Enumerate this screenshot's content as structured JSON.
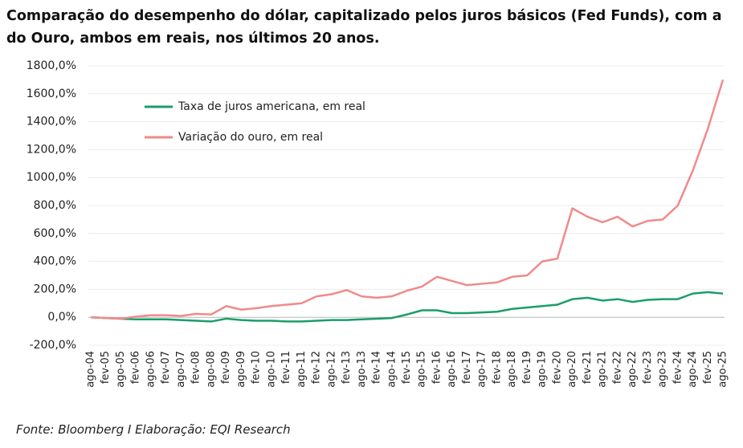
{
  "chart_data": {
    "type": "line",
    "title": "Comparação do desempenho do dólar, capitalizado pelos juros básicos (Fed Funds), com a do Ouro, ambos em reais, nos últimos 20 anos.",
    "source": "Fonte: Bloomberg I Elaboração: EQI Research",
    "categories": [
      "ago-04",
      "fev-05",
      "ago-05",
      "fev-06",
      "ago-06",
      "fev-07",
      "ago-07",
      "fev-08",
      "ago-08",
      "fev-09",
      "ago-09",
      "fev-10",
      "ago-10",
      "fev-11",
      "ago-11",
      "fev-12",
      "ago-12",
      "fev-13",
      "ago-13",
      "fev-14",
      "ago-14",
      "fev-15",
      "ago-15",
      "fev-16",
      "ago-16",
      "fev-17",
      "ago-17",
      "fev-18",
      "ago-18",
      "fev-19",
      "ago-19",
      "fev-20",
      "ago-20",
      "fev-21",
      "ago-21",
      "fev-22",
      "ago-22",
      "fev-23",
      "ago-23",
      "fev-24",
      "ago-24",
      "fev-25",
      "ago-25"
    ],
    "series": [
      {
        "name": "Taxa de juros americana, em real",
        "color": "#1a9e6a",
        "values": [
          0,
          -5,
          -10,
          -15,
          -15,
          -15,
          -20,
          -25,
          -30,
          -10,
          -20,
          -25,
          -25,
          -30,
          -30,
          -25,
          -20,
          -20,
          -15,
          -10,
          -5,
          20,
          50,
          50,
          30,
          30,
          35,
          40,
          60,
          70,
          80,
          90,
          130,
          140,
          120,
          130,
          110,
          125,
          130,
          130,
          170,
          180,
          170
        ]
      },
      {
        "name": "Variação do ouro, em real",
        "color": "#f08a8a",
        "values": [
          0,
          -5,
          -10,
          5,
          15,
          15,
          10,
          25,
          20,
          80,
          55,
          65,
          80,
          90,
          100,
          150,
          165,
          195,
          150,
          140,
          150,
          190,
          220,
          290,
          260,
          230,
          240,
          250,
          290,
          300,
          400,
          420,
          780,
          720,
          680,
          720,
          650,
          690,
          700,
          800,
          1050,
          1350,
          1700
        ]
      }
    ],
    "ylim": [
      -200,
      1800
    ],
    "yticks": [
      {
        "value": -200,
        "label": "-200,0%"
      },
      {
        "value": 0,
        "label": "0,0%"
      },
      {
        "value": 200,
        "label": "200,0%"
      },
      {
        "value": 400,
        "label": "400,0%"
      },
      {
        "value": 600,
        "label": "600,0%"
      },
      {
        "value": 800,
        "label": "800,0%"
      },
      {
        "value": 1000,
        "label": "1000,0%"
      },
      {
        "value": 1200,
        "label": "1200,0%"
      },
      {
        "value": 1400,
        "label": "1400,0%"
      },
      {
        "value": 1600,
        "label": "1600,0%"
      },
      {
        "value": 1800,
        "label": "1800,0%"
      }
    ],
    "grid": true
  }
}
